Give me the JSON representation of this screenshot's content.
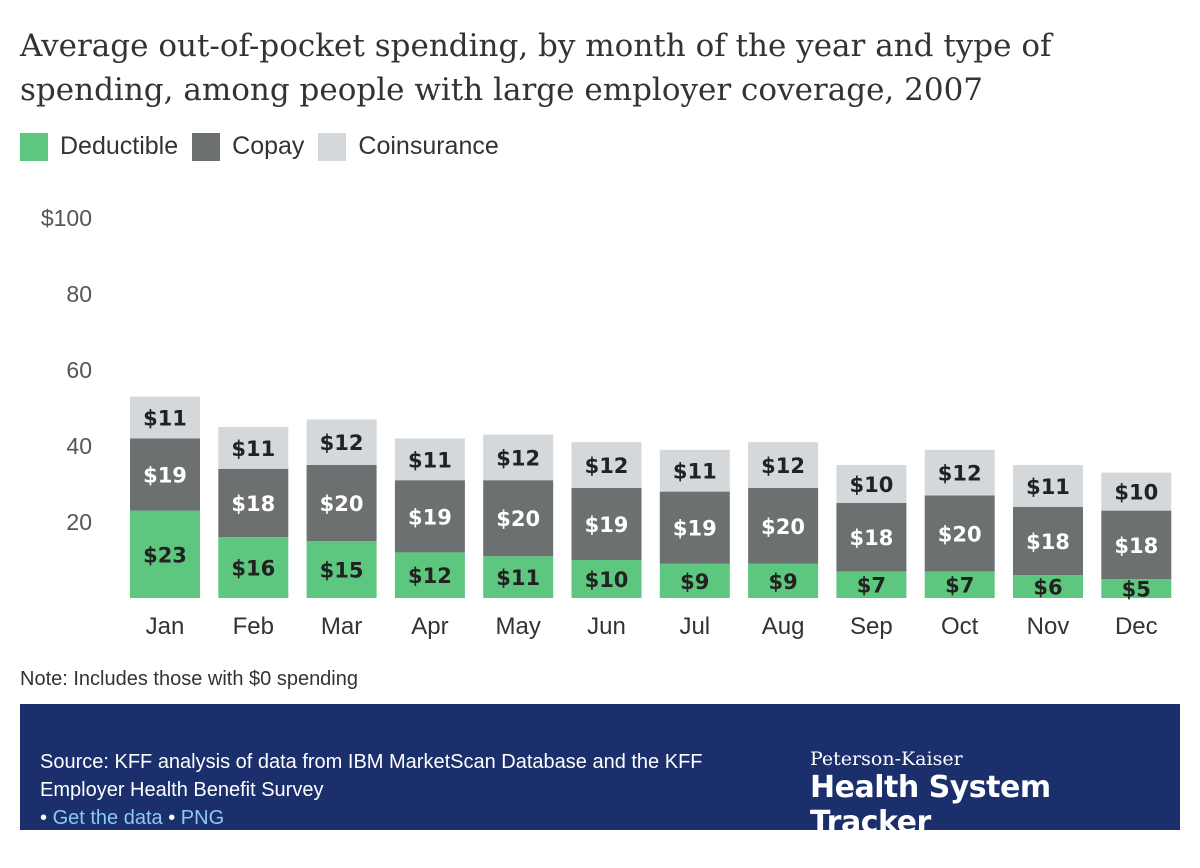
{
  "colors": {
    "deductible": "#5dc77f",
    "copay": "#6c7071",
    "coinsurance": "#d4d8db",
    "footer_bg": "#1a2f6b",
    "link": "#8ccaf0"
  },
  "chart_data": {
    "type": "bar",
    "stacked": true,
    "title": "Average out-of-pocket spending, by month of the year and type of spending, among people with large employer coverage, 2007",
    "categories": [
      "Jan",
      "Feb",
      "Mar",
      "Apr",
      "May",
      "Jun",
      "Jul",
      "Aug",
      "Sep",
      "Oct",
      "Nov",
      "Dec"
    ],
    "series": [
      {
        "name": "Deductible",
        "values": [
          23,
          16,
          15,
          12,
          11,
          10,
          9,
          9,
          7,
          7,
          6,
          5
        ],
        "labels": [
          "$23",
          "$16",
          "$15",
          "$12",
          "$11",
          "$10",
          "$9",
          "$9",
          "$7",
          "$7",
          "$6",
          "$5"
        ]
      },
      {
        "name": "Copay",
        "values": [
          19,
          18,
          20,
          19,
          20,
          19,
          19,
          20,
          18,
          20,
          18,
          18
        ],
        "labels": [
          "$19",
          "$18",
          "$20",
          "$19",
          "$20",
          "$19",
          "$19",
          "$20",
          "$18",
          "$20",
          "$18",
          "$18"
        ]
      },
      {
        "name": "Coinsurance",
        "values": [
          11,
          11,
          12,
          11,
          12,
          12,
          11,
          12,
          10,
          12,
          11,
          10
        ],
        "labels": [
          "$11",
          "$11",
          "$12",
          "$11",
          "$12",
          "$12",
          "$11",
          "$12",
          "$10",
          "$12",
          "$11",
          "$10"
        ]
      }
    ],
    "y_ticks": [
      20,
      40,
      60,
      80,
      100
    ],
    "y_tick_labels": [
      "20",
      "40",
      "60",
      "80",
      "$100"
    ],
    "ylim": [
      0,
      100
    ],
    "grid": false,
    "legend_position": "top-left"
  },
  "note": "Note: Includes those with $0 spending",
  "footer": {
    "source": "Source: KFF analysis of data from IBM MarketScan Database and the KFF Employer Health Benefit Survey",
    "bullet1": "•",
    "link_data": "Get the data",
    "bullet2": "•",
    "link_png": "PNG",
    "brand_small": "Peterson-Kaiser",
    "brand_big": "Health System Tracker"
  }
}
